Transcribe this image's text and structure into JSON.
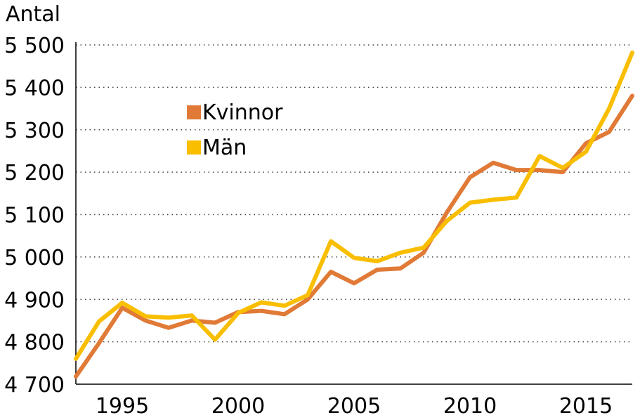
{
  "chart_data": {
    "type": "line",
    "title": "",
    "xlabel": "",
    "ylabel": "Antal",
    "ylim": [
      4700,
      5500
    ],
    "xlim": [
      1993,
      2017
    ],
    "yticks": [
      4700,
      4800,
      4900,
      5000,
      5100,
      5200,
      5300,
      5400,
      5500
    ],
    "ytick_labels": [
      "4 700",
      "4 800",
      "4 900",
      "5 000",
      "5 100",
      "5 200",
      "5 300",
      "5 400",
      "5 500"
    ],
    "xticks": [
      1995,
      2000,
      2005,
      2010,
      2015
    ],
    "xtick_labels": [
      "1995",
      "2000",
      "2005",
      "2010",
      "2015"
    ],
    "grid": "horizontal-dotted",
    "legend_position": "top-left",
    "x": [
      1993,
      1994,
      1995,
      1996,
      1997,
      1998,
      1999,
      2000,
      2001,
      2002,
      2003,
      2004,
      2005,
      2006,
      2007,
      2008,
      2009,
      2010,
      2011,
      2012,
      2013,
      2014,
      2015,
      2016,
      2017
    ],
    "series": [
      {
        "name": "Kvinnor",
        "color": "#E07A36",
        "values": [
          4718,
          4797,
          4880,
          4850,
          4833,
          4850,
          4845,
          4870,
          4873,
          4865,
          4900,
          4965,
          4938,
          4970,
          4973,
          5010,
          5105,
          5188,
          5222,
          5205,
          5205,
          5200,
          5268,
          5295,
          5380
        ]
      },
      {
        "name": "Män",
        "color": "#F9BE00",
        "values": [
          4760,
          4848,
          4892,
          4860,
          4857,
          4862,
          4805,
          4868,
          4893,
          4885,
          4910,
          5037,
          4998,
          4990,
          5010,
          5022,
          5085,
          5128,
          5135,
          5140,
          5238,
          5210,
          5248,
          5350,
          5482
        ]
      }
    ]
  }
}
